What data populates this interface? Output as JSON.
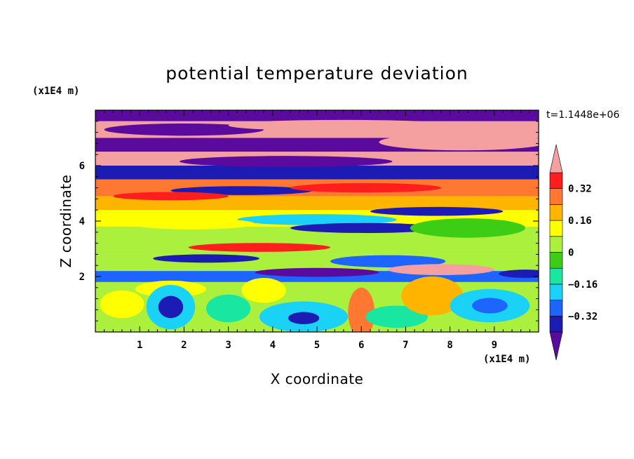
{
  "chart_data": {
    "type": "heatmap",
    "title": "potential temperature deviation",
    "xlabel": "X coordinate",
    "ylabel": "Z coordinate",
    "x_unit": "(x1E4 m)",
    "y_unit": "(x1E4 m)",
    "time_label": "t=1.1448e+06",
    "xlim": [
      0,
      10
    ],
    "ylim": [
      0,
      8
    ],
    "xticks": [
      1,
      2,
      3,
      4,
      5,
      6,
      7,
      8,
      9
    ],
    "yticks": [
      2,
      4,
      6
    ],
    "xtick_labels": [
      "1",
      "2",
      "3",
      "4",
      "5",
      "6",
      "7",
      "8",
      "9"
    ],
    "ytick_labels": [
      "2",
      "4",
      "6"
    ],
    "colorbar": {
      "levels": [
        -0.4,
        -0.32,
        -0.24,
        -0.16,
        -0.08,
        0,
        0.08,
        0.16,
        0.24,
        0.32,
        0.4
      ],
      "tick_values": [
        0.32,
        0.16,
        0,
        -0.16,
        -0.32
      ],
      "tick_labels": [
        "0.32",
        "0.16",
        "0",
        "−0.16",
        "−0.32"
      ],
      "colors": [
        "#5a0a9c",
        "#1c1cb4",
        "#1e64ff",
        "#19d2f5",
        "#19e6a0",
        "#3ccd14",
        "#aaf03c",
        "#ffff00",
        "#ffb400",
        "#ff7832",
        "#ff1e1e",
        "#f5a0a0"
      ],
      "extend": "both"
    },
    "bands": [
      {
        "z_top": 8.0,
        "z_bottom": 7.6,
        "level": -0.45
      },
      {
        "z_top": 7.6,
        "z_bottom": 7.0,
        "level": 0.45
      },
      {
        "z_top": 7.0,
        "z_bottom": 6.5,
        "level": -0.45
      },
      {
        "z_top": 6.5,
        "z_bottom": 6.0,
        "level": 0.45
      },
      {
        "z_top": 6.0,
        "z_bottom": 5.5,
        "level": -0.35
      },
      {
        "z_top": 5.5,
        "z_bottom": 4.9,
        "level": 0.25
      },
      {
        "z_top": 4.9,
        "z_bottom": 4.4,
        "level": 0.2
      },
      {
        "z_top": 4.4,
        "z_bottom": 3.8,
        "level": 0.1
      },
      {
        "z_top": 3.8,
        "z_bottom": 2.8,
        "level": 0.03
      },
      {
        "z_top": 2.8,
        "z_bottom": 2.2,
        "level": 0.0
      },
      {
        "z_top": 2.2,
        "z_bottom": 1.8,
        "level": -0.3
      },
      {
        "z_top": 1.8,
        "z_bottom": 0.0,
        "level": 0.05
      }
    ],
    "features": [
      {
        "cx": 2.0,
        "cz": 7.3,
        "rx": 1.8,
        "rz": 0.22,
        "level": -0.45
      },
      {
        "cx": 5.6,
        "cz": 7.45,
        "rx": 2.6,
        "rz": 0.2,
        "level": 0.45
      },
      {
        "cx": 8.3,
        "cz": 6.85,
        "rx": 1.9,
        "rz": 0.3,
        "level": 0.45
      },
      {
        "cx": 1.1,
        "cz": 6.3,
        "rx": 1.1,
        "rz": 0.18,
        "level": 0.45
      },
      {
        "cx": 4.3,
        "cz": 6.15,
        "rx": 2.4,
        "rz": 0.2,
        "level": -0.45
      },
      {
        "cx": 7.2,
        "cz": 5.75,
        "rx": 2.9,
        "rz": 0.22,
        "level": -0.4
      },
      {
        "cx": 3.3,
        "cz": 5.1,
        "rx": 1.6,
        "rz": 0.16,
        "level": -0.4
      },
      {
        "cx": 6.1,
        "cz": 5.2,
        "rx": 1.7,
        "rz": 0.17,
        "level": 0.35
      },
      {
        "cx": 1.7,
        "cz": 4.9,
        "rx": 1.3,
        "rz": 0.15,
        "level": 0.35
      },
      {
        "cx": 7.7,
        "cz": 4.35,
        "rx": 1.5,
        "rz": 0.16,
        "level": -0.35
      },
      {
        "cx": 5.0,
        "cz": 4.05,
        "rx": 1.8,
        "rz": 0.2,
        "level": -0.2
      },
      {
        "cx": 6.1,
        "cz": 3.75,
        "rx": 1.7,
        "rz": 0.18,
        "level": -0.38
      },
      {
        "cx": 2.2,
        "cz": 3.9,
        "rx": 1.4,
        "rz": 0.2,
        "level": 0.12
      },
      {
        "cx": 8.4,
        "cz": 3.75,
        "rx": 1.3,
        "rz": 0.35,
        "level": -0.05
      },
      {
        "cx": 3.7,
        "cz": 3.05,
        "rx": 1.6,
        "rz": 0.16,
        "level": 0.34
      },
      {
        "cx": 2.5,
        "cz": 2.65,
        "rx": 1.2,
        "rz": 0.15,
        "level": -0.4
      },
      {
        "cx": 6.6,
        "cz": 2.55,
        "rx": 1.3,
        "rz": 0.22,
        "level": -0.3
      },
      {
        "cx": 7.8,
        "cz": 2.25,
        "rx": 1.2,
        "rz": 0.2,
        "level": 0.42
      },
      {
        "cx": 5.0,
        "cz": 2.15,
        "rx": 1.4,
        "rz": 0.16,
        "level": -0.42
      },
      {
        "cx": 1.7,
        "cz": 1.55,
        "rx": 0.8,
        "rz": 0.3,
        "level": 0.12
      },
      {
        "cx": 1.7,
        "cz": 0.9,
        "rx": 0.55,
        "rz": 0.8,
        "level": -0.22
      },
      {
        "cx": 1.7,
        "cz": 0.9,
        "rx": 0.28,
        "rz": 0.4,
        "level": -0.36
      },
      {
        "cx": 3.0,
        "cz": 0.85,
        "rx": 0.5,
        "rz": 0.5,
        "level": -0.1
      },
      {
        "cx": 4.7,
        "cz": 0.55,
        "rx": 1.0,
        "rz": 0.55,
        "level": -0.18
      },
      {
        "cx": 4.7,
        "cz": 0.5,
        "rx": 0.35,
        "rz": 0.22,
        "level": -0.34
      },
      {
        "cx": 6.0,
        "cz": 0.7,
        "rx": 0.3,
        "rz": 0.9,
        "level": 0.28
      },
      {
        "cx": 6.8,
        "cz": 0.55,
        "rx": 0.7,
        "rz": 0.4,
        "level": -0.15
      },
      {
        "cx": 7.6,
        "cz": 1.3,
        "rx": 0.7,
        "rz": 0.7,
        "level": 0.22
      },
      {
        "cx": 8.9,
        "cz": 0.95,
        "rx": 0.9,
        "rz": 0.6,
        "level": -0.18
      },
      {
        "cx": 8.9,
        "cz": 0.95,
        "rx": 0.4,
        "rz": 0.28,
        "level": -0.28
      },
      {
        "cx": 0.6,
        "cz": 1.0,
        "rx": 0.5,
        "rz": 0.5,
        "level": 0.15
      },
      {
        "cx": 3.8,
        "cz": 1.5,
        "rx": 0.5,
        "rz": 0.45,
        "level": 0.15
      },
      {
        "cx": 9.7,
        "cz": 2.1,
        "rx": 0.6,
        "rz": 0.15,
        "level": -0.4
      }
    ]
  }
}
